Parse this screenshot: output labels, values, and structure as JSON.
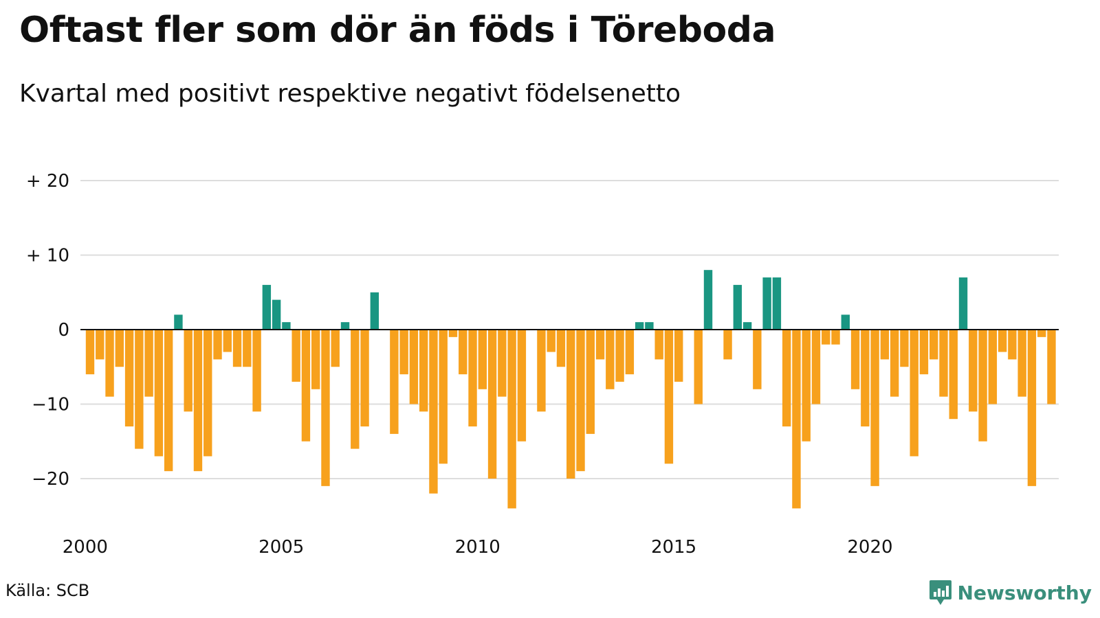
{
  "title": "Oftast fler som dör än föds i Töreboda",
  "subtitle": "Kvartal med positivt respektive negativt födelsenetto",
  "source": "Källa: SCB",
  "brand": {
    "name": "Newsworthy",
    "icon": "bar-chart-speech-bubble-icon"
  },
  "colors": {
    "positive": "#1a9682",
    "negative": "#f7a11d",
    "grid": "#dddddd",
    "text": "#111111",
    "brand": "#3a8f7c"
  },
  "chart_data": {
    "type": "bar",
    "title": "Oftast fler som dör än föds i Töreboda",
    "subtitle": "Kvartal med positivt respektive negativt födelsenetto",
    "xlabel": "",
    "ylabel": "",
    "ylim": [
      -25,
      20
    ],
    "yticks": [
      20,
      10,
      0,
      -10,
      -20
    ],
    "ytick_labels": [
      "+ 20",
      "+ 10",
      "0",
      "−10",
      "−20"
    ],
    "xticks": [
      "2000",
      "2005",
      "2010",
      "2015",
      "2020"
    ],
    "grid": true,
    "start_year": 2000,
    "periods_per_year": 4,
    "values": [
      -6,
      -4,
      -9,
      -5,
      -13,
      -16,
      -9,
      -17,
      -19,
      2,
      -11,
      -19,
      -17,
      -4,
      -3,
      -5,
      -5,
      -11,
      6,
      4,
      1,
      -7,
      -15,
      -8,
      -21,
      -5,
      1,
      -16,
      -13,
      5,
      0,
      -14,
      -6,
      -10,
      -11,
      -22,
      -18,
      -1,
      -6,
      -13,
      -8,
      -20,
      -9,
      -24,
      -15,
      0,
      -11,
      -3,
      -5,
      -20,
      -19,
      -14,
      -4,
      -8,
      -7,
      -6,
      1,
      1,
      -4,
      -18,
      -7,
      0,
      -10,
      8,
      0,
      -4,
      6,
      1,
      -8,
      7,
      7,
      -13,
      -24,
      -15,
      -10,
      -2,
      -2,
      2,
      -8,
      -13,
      -21,
      -4,
      -9,
      -5,
      -17,
      -6,
      -4,
      -9,
      -12,
      7,
      -11,
      -15,
      -10,
      -3,
      -4,
      -9,
      -21,
      -1,
      -10
    ]
  }
}
